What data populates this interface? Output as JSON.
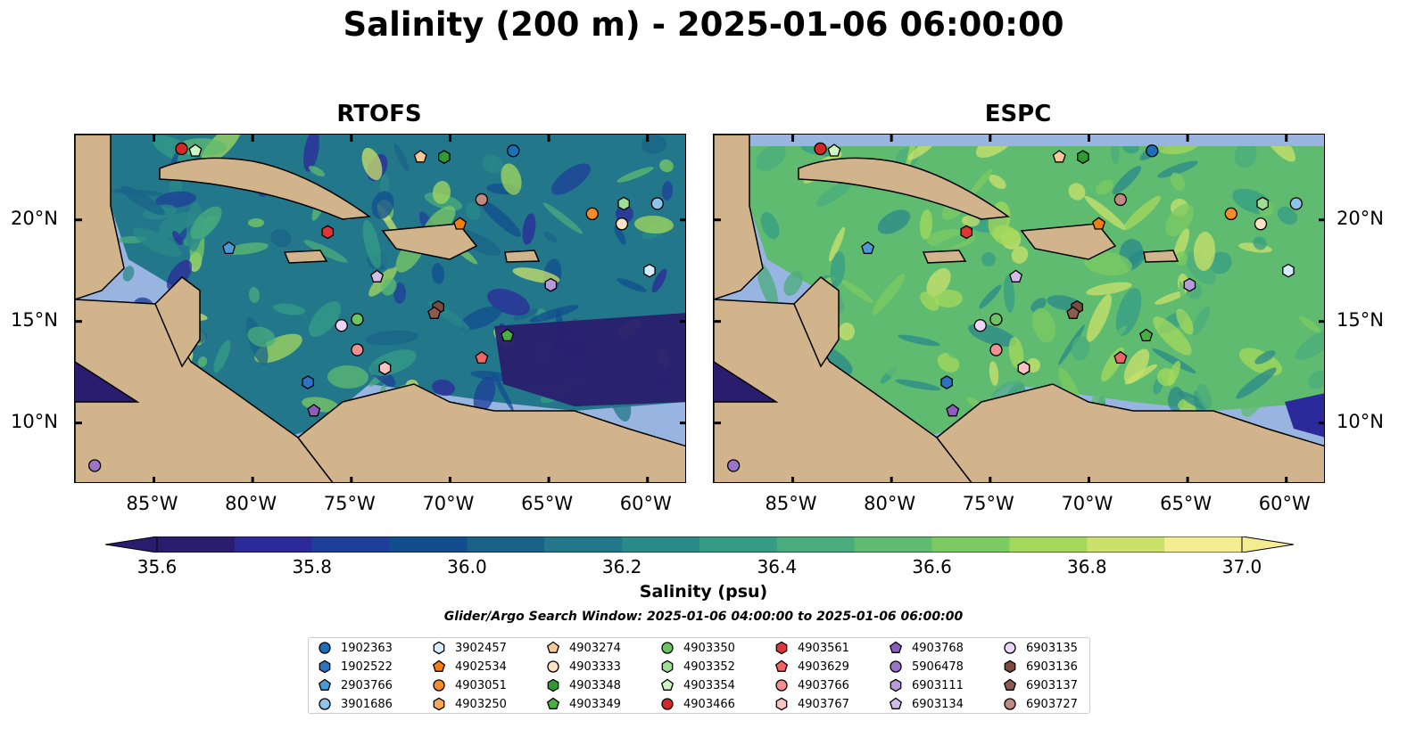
{
  "title": "Salinity (200 m) - 2025-01-06 06:00:00",
  "panels": [
    {
      "title": "RTOFS"
    },
    {
      "title": "ESPC"
    }
  ],
  "axes": {
    "lon_ticks": [
      "85°W",
      "80°W",
      "75°W",
      "70°W",
      "65°W",
      "60°W"
    ],
    "lat_ticks": [
      "20°N",
      "15°N",
      "10°N"
    ],
    "lon_values": [
      -85,
      -80,
      -75,
      -70,
      -65,
      -60
    ],
    "lat_values": [
      20,
      15,
      10
    ],
    "lon_range": [
      -89,
      -58
    ],
    "lat_range": [
      7,
      24.2
    ]
  },
  "colorbar": {
    "label": "Salinity (psu)",
    "tick_labels": [
      "35.6",
      "35.8",
      "36.0",
      "36.2",
      "36.4",
      "36.6",
      "36.8",
      "37.0"
    ],
    "ticks": [
      35.6,
      35.8,
      36.0,
      36.2,
      36.4,
      36.6,
      36.8,
      37.0
    ],
    "range": [
      35.6,
      37.0
    ],
    "extend": "both",
    "colors": [
      "#2a1d6e",
      "#2c2a9b",
      "#1d3f9a",
      "#124e8e",
      "#1a6388",
      "#23778a",
      "#2a8a89",
      "#349c85",
      "#49ac7c",
      "#5fbb70",
      "#7ccb62",
      "#a4d85c",
      "#cce16b",
      "#f4ec91"
    ]
  },
  "search_window": "Glider/Argo Search Window: 2025-01-06 04:00:00 to 2025-01-06 06:00:00",
  "legend": [
    {
      "id": "1902363",
      "marker": "circle",
      "color": "#1f6fb4"
    },
    {
      "id": "1902522",
      "marker": "hexagon",
      "color": "#2c74c0"
    },
    {
      "id": "2903766",
      "marker": "pentagon",
      "color": "#4a9ad8"
    },
    {
      "id": "3901686",
      "marker": "circle",
      "color": "#8ec3ec"
    },
    {
      "id": "3902457",
      "marker": "hexagon",
      "color": "#d4ecfb"
    },
    {
      "id": "4902534",
      "marker": "pentagon",
      "color": "#f07e12"
    },
    {
      "id": "4903051",
      "marker": "circle",
      "color": "#f58b2a"
    },
    {
      "id": "4903250",
      "marker": "hexagon",
      "color": "#f9a855"
    },
    {
      "id": "4903274",
      "marker": "pentagon",
      "color": "#f9c898"
    },
    {
      "id": "4903333",
      "marker": "circle",
      "color": "#fde3c4"
    },
    {
      "id": "4903348",
      "marker": "hexagon",
      "color": "#2e9a32"
    },
    {
      "id": "4903349",
      "marker": "pentagon",
      "color": "#48b043"
    },
    {
      "id": "4903350",
      "marker": "circle",
      "color": "#6cc463"
    },
    {
      "id": "4903352",
      "marker": "hexagon",
      "color": "#a0de98"
    },
    {
      "id": "4903354",
      "marker": "pentagon",
      "color": "#cdf6c4"
    },
    {
      "id": "4903466",
      "marker": "circle",
      "color": "#d62728"
    },
    {
      "id": "4903561",
      "marker": "hexagon",
      "color": "#e03537"
    },
    {
      "id": "4903629",
      "marker": "pentagon",
      "color": "#ef6566"
    },
    {
      "id": "4903766",
      "marker": "circle",
      "color": "#f58e8e"
    },
    {
      "id": "4903767",
      "marker": "hexagon",
      "color": "#fbc2c2"
    },
    {
      "id": "4903768",
      "marker": "pentagon",
      "color": "#8d5cc0"
    },
    {
      "id": "5906478",
      "marker": "circle",
      "color": "#9c75ca"
    },
    {
      "id": "6903111",
      "marker": "hexagon",
      "color": "#b79ad8"
    },
    {
      "id": "6903134",
      "marker": "pentagon",
      "color": "#d2bdea"
    },
    {
      "id": "6903135",
      "marker": "circle",
      "color": "#ecd6f7"
    },
    {
      "id": "6903136",
      "marker": "hexagon",
      "color": "#7a4b3e"
    },
    {
      "id": "6903137",
      "marker": "pentagon",
      "color": "#8c5b4e"
    },
    {
      "id": "6903727",
      "marker": "circle",
      "color": "#c08a80"
    }
  ],
  "float_positions": [
    {
      "id": "1902363",
      "lon": -66.8,
      "lat": 23.4
    },
    {
      "id": "1902522",
      "lon": -77.2,
      "lat": 12.0
    },
    {
      "id": "2903766",
      "lon": -81.2,
      "lat": 18.6
    },
    {
      "id": "3901686",
      "lon": -59.5,
      "lat": 20.8
    },
    {
      "id": "3902457",
      "lon": -59.9,
      "lat": 17.5
    },
    {
      "id": "4902534",
      "lon": -69.5,
      "lat": 19.8
    },
    {
      "id": "4903051",
      "lon": -62.8,
      "lat": 20.3
    },
    {
      "id": "4903250",
      "lon": -73.3,
      "lat": 12.7
    },
    {
      "id": "4903274",
      "lon": -71.5,
      "lat": 23.1
    },
    {
      "id": "4903333",
      "lon": -61.3,
      "lat": 19.8
    },
    {
      "id": "4903348",
      "lon": -70.3,
      "lat": 23.1
    },
    {
      "id": "4903349",
      "lon": -67.1,
      "lat": 14.3
    },
    {
      "id": "4903350",
      "lon": -74.7,
      "lat": 15.1
    },
    {
      "id": "4903352",
      "lon": -61.2,
      "lat": 20.8
    },
    {
      "id": "4903354",
      "lon": -82.9,
      "lat": 23.4
    },
    {
      "id": "4903466",
      "lon": -83.6,
      "lat": 23.5
    },
    {
      "id": "4903561",
      "lon": -76.2,
      "lat": 19.4
    },
    {
      "id": "4903629",
      "lon": -68.4,
      "lat": 13.2
    },
    {
      "id": "4903766",
      "lon": -74.7,
      "lat": 13.6
    },
    {
      "id": "4903767",
      "lon": -73.3,
      "lat": 12.7
    },
    {
      "id": "4903768",
      "lon": -76.9,
      "lat": 10.6
    },
    {
      "id": "5906478",
      "lon": -88.0,
      "lat": 7.9
    },
    {
      "id": "6903111",
      "lon": -64.9,
      "lat": 16.8
    },
    {
      "id": "6903134",
      "lon": -73.7,
      "lat": 17.2
    },
    {
      "id": "6903135",
      "lon": -75.5,
      "lat": 14.8
    },
    {
      "id": "6903136",
      "lon": -70.6,
      "lat": 15.7
    },
    {
      "id": "6903137",
      "lon": -70.8,
      "lat": 15.4
    },
    {
      "id": "6903727",
      "lon": -68.4,
      "lat": 21.0
    }
  ]
}
